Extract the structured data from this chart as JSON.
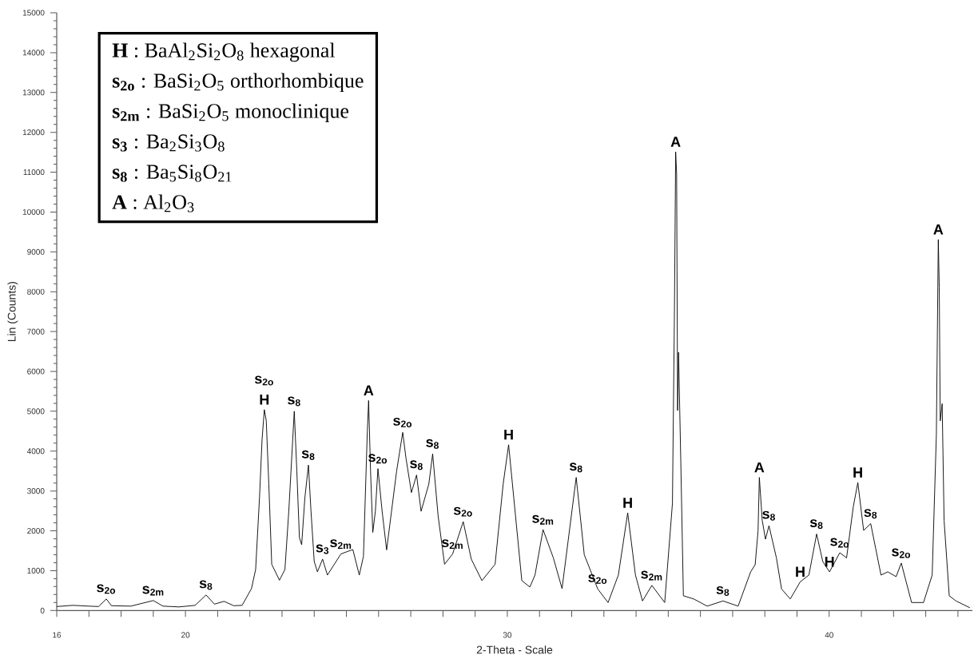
{
  "chart_data": {
    "type": "line",
    "xlabel": "2-Theta - Scale",
    "ylabel": "Lin (Counts)",
    "color": "#000000",
    "legend": false,
    "marker": "none",
    "xlim": [
      16,
      44.45
    ],
    "ylim": [
      0,
      15000
    ],
    "xticks": [
      16,
      {
        "value": 17,
        "label": null
      },
      {
        "value": 18,
        "label": null
      },
      {
        "value": 19,
        "label": null
      },
      20,
      {
        "value": 21,
        "label": null
      },
      {
        "value": 22,
        "label": null
      },
      {
        "value": 23,
        "label": null
      },
      {
        "value": 24,
        "label": null
      },
      {
        "value": 25,
        "label": null
      },
      {
        "value": 26,
        "label": null
      },
      {
        "value": 27,
        "label": null
      },
      {
        "value": 28,
        "label": null
      },
      {
        "value": 29,
        "label": null
      },
      30,
      {
        "value": 31,
        "label": null
      },
      {
        "value": 32,
        "label": null
      },
      {
        "value": 33,
        "label": null
      },
      {
        "value": 34,
        "label": null
      },
      {
        "value": 35,
        "label": null
      },
      {
        "value": 36,
        "label": null
      },
      {
        "value": 37,
        "label": null
      },
      {
        "value": 38,
        "label": null
      },
      {
        "value": 39,
        "label": null
      },
      40,
      {
        "value": 41,
        "label": null
      },
      {
        "value": 42,
        "label": null
      },
      {
        "value": 43,
        "label": null
      },
      {
        "value": 44,
        "label": null
      }
    ],
    "yticks": [
      0,
      1000,
      2000,
      3000,
      4000,
      5000,
      6000,
      7000,
      8000,
      9000,
      10000,
      11000,
      12000,
      13000,
      14000,
      15000
    ],
    "x": [
      16.0,
      16.5,
      17.0,
      17.3,
      17.54,
      17.7,
      18.3,
      19.0,
      19.3,
      19.8,
      20.3,
      20.64,
      20.9,
      21.2,
      21.5,
      21.76,
      22.05,
      22.18,
      22.3,
      22.38,
      22.45,
      22.51,
      22.59,
      22.68,
      22.92,
      23.09,
      23.21,
      23.38,
      23.46,
      23.54,
      23.61,
      23.71,
      23.82,
      23.9,
      24.0,
      24.1,
      24.26,
      24.41,
      24.83,
      25.2,
      25.4,
      25.53,
      25.65,
      25.69,
      25.75,
      25.82,
      25.9,
      25.98,
      26.11,
      26.25,
      26.56,
      26.75,
      26.85,
      27.02,
      27.18,
      27.32,
      27.56,
      27.68,
      27.85,
      28.05,
      28.3,
      28.63,
      28.88,
      29.21,
      29.62,
      29.87,
      30.04,
      30.2,
      30.45,
      30.7,
      30.86,
      31.11,
      31.43,
      31.7,
      32.14,
      32.39,
      32.81,
      33.13,
      33.45,
      33.74,
      33.98,
      34.2,
      34.49,
      34.89,
      35.13,
      35.19,
      35.23,
      35.26,
      35.29,
      35.32,
      35.39,
      35.47,
      35.79,
      36.21,
      36.7,
      37.17,
      37.56,
      37.7,
      37.79,
      37.83,
      37.92,
      38.02,
      38.13,
      38.36,
      38.52,
      38.79,
      39.1,
      39.37,
      39.61,
      39.8,
      40.01,
      40.33,
      40.54,
      40.75,
      40.89,
      41.07,
      41.29,
      41.61,
      41.82,
      42.08,
      42.24,
      42.56,
      42.93,
      43.2,
      43.33,
      43.39,
      43.42,
      43.45,
      43.51,
      43.57,
      43.73,
      43.94,
      44.37
    ],
    "values": [
      100,
      130,
      110,
      100,
      290,
      120,
      110,
      250,
      110,
      90,
      130,
      390,
      160,
      230,
      120,
      130,
      550,
      1030,
      2830,
      4300,
      5040,
      4760,
      3160,
      1160,
      760,
      1030,
      2490,
      5000,
      3500,
      1830,
      1650,
      2830,
      3650,
      2490,
      1230,
      970,
      1290,
      890,
      1420,
      1530,
      890,
      1360,
      4500,
      5270,
      3500,
      1960,
      2490,
      3560,
      2490,
      1520,
      3500,
      4470,
      3830,
      2960,
      3400,
      2490,
      3170,
      3930,
      2370,
      1160,
      1420,
      2230,
      1290,
      750,
      1160,
      3170,
      4160,
      2830,
      750,
      590,
      890,
      2030,
      1320,
      550,
      3340,
      1400,
      540,
      200,
      890,
      2450,
      890,
      240,
      630,
      200,
      2690,
      7340,
      11510,
      10950,
      5020,
      6480,
      3730,
      370,
      290,
      110,
      240,
      110,
      970,
      1150,
      2000,
      3340,
      2260,
      1790,
      2130,
      1320,
      540,
      290,
      720,
      890,
      1920,
      1230,
      970,
      1450,
      1320,
      2610,
      3210,
      2010,
      2180,
      890,
      970,
      850,
      1190,
      200,
      200,
      890,
      4410,
      9310,
      8110,
      4760,
      5190,
      2260,
      370,
      240,
      70
    ],
    "annotations": [
      "**H** : BaAl$_{2}$Si$_{2}$O$_{8}$ hexagonal",
      "**s$_{2o}$** : BaSi$_{2}$O$_{5}$ orthorhombique",
      "**s$_{2m}$** : BaSi$_{2}$O$_{5}$ monoclinique",
      "**s$_{3}$** : Ba$_{2}$Si$_{3}$O$_{8}$",
      "**s$_{8}$** : Ba$_{5}$Si$_{8}$O$_{21}$",
      "**A** : Al$_{2}$O$_{3}$",
      {
        "text": "s$_{2o}$",
        "x": 17.54,
        "y": 290
      },
      {
        "text": "s$_{2m}$",
        "x": 19.0,
        "y": 250
      },
      {
        "text": "s$_{8}$",
        "x": 20.64,
        "y": 390
      },
      {
        "text": "s$_{2o}$",
        "x": 22.45,
        "y": 5040
      },
      {
        "text": "H",
        "x": 22.45,
        "y": 5040
      },
      {
        "text": "s$_{8}$",
        "x": 23.38,
        "y": 5000
      },
      {
        "text": "s$_{8}$",
        "x": 23.82,
        "y": 3650
      },
      {
        "text": "s$_{3}$",
        "x": 24.26,
        "y": 1290
      },
      {
        "text": "s$_{2m}$",
        "x": 24.83,
        "y": 1420
      },
      {
        "text": "A",
        "x": 25.69,
        "y": 5270
      },
      {
        "text": "s$_{2o}$",
        "x": 25.98,
        "y": 3560
      },
      {
        "text": "s$_{2o}$",
        "x": 26.75,
        "y": 4470
      },
      {
        "text": "s$_{8}$",
        "x": 27.18,
        "y": 3400
      },
      {
        "text": "s$_{8}$",
        "x": 27.68,
        "y": 3930
      },
      {
        "text": "s$_{2o}$",
        "x": 28.63,
        "y": 2230
      },
      {
        "text": "s$_{2m}$",
        "x": 28.3,
        "y": 1420
      },
      {
        "text": "H",
        "x": 30.04,
        "y": 4160
      },
      {
        "text": "s$_{2m}$",
        "x": 31.11,
        "y": 2030
      },
      {
        "text": "s$_{8}$",
        "x": 32.14,
        "y": 3340
      },
      {
        "text": "s$_{2o}$",
        "x": 32.81,
        "y": 540
      },
      {
        "text": "H",
        "x": 33.74,
        "y": 2450
      },
      {
        "text": "s$_{2m}$",
        "x": 34.49,
        "y": 630
      },
      {
        "text": "A",
        "x": 35.23,
        "y": 11510
      },
      {
        "text": "s$_{8}$",
        "x": 36.7,
        "y": 240
      },
      {
        "text": "A",
        "x": 37.83,
        "y": 3340
      },
      {
        "text": "s$_{8}$",
        "x": 38.13,
        "y": 2130
      },
      {
        "text": "H",
        "x": 39.1,
        "y": 720
      },
      {
        "text": "s$_{8}$",
        "x": 39.61,
        "y": 1920
      },
      {
        "text": "H",
        "x": 40.01,
        "y": 970
      },
      {
        "text": "s$_{2o}$",
        "x": 40.33,
        "y": 1450
      },
      {
        "text": "H",
        "x": 40.89,
        "y": 3210
      },
      {
        "text": "s$_{8}$",
        "x": 41.29,
        "y": 2180
      },
      {
        "text": "s$_{2o}$",
        "x": 42.24,
        "y": 1190
      },
      {
        "text": "A",
        "x": 43.39,
        "y": 9310
      }
    ]
  }
}
